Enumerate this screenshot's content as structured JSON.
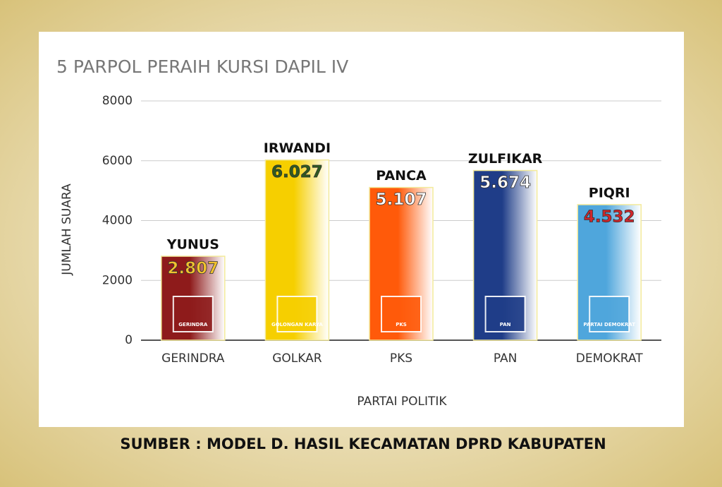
{
  "chart_data": {
    "type": "bar",
    "title": "5 PARPOL PERAIH KURSI DAPIL IV",
    "x_label": "PARTAI POLITIK",
    "y_label": "JUMLAH SUARA",
    "categories": [
      "GERINDRA",
      "GOLKAR",
      "PKS",
      "PAN",
      "DEMOKRAT"
    ],
    "annotations": [
      "YUNUS",
      "IRWANDI",
      "PANCA",
      "ZULFIKAR",
      "PIQRI"
    ],
    "values": [
      2807,
      6027,
      5107,
      5674,
      4532
    ],
    "value_labels": [
      "2.807",
      "6.027",
      "5.107",
      "5.674",
      "4.532"
    ],
    "colors": [
      "#8e1b1b",
      "#f6cf00",
      "#ff5a0a",
      "#1f3d88",
      "#4fa6dc"
    ],
    "label_colors": [
      "#f2c22e",
      "#2f5a1f",
      "#ffffff",
      "#ffffff",
      "#d0262b"
    ],
    "logos": [
      "GERINDRA",
      "GOLONGAN KARYA",
      "PKS",
      "PAN",
      "PARTAI DEMOKRAT"
    ],
    "ylim": [
      0,
      8000
    ],
    "yticks": [
      0,
      2000,
      4000,
      6000,
      8000
    ],
    "grid": true,
    "source": "SUMBER : MODEL D. HASIL KECAMATAN DPRD KABUPATEN"
  }
}
